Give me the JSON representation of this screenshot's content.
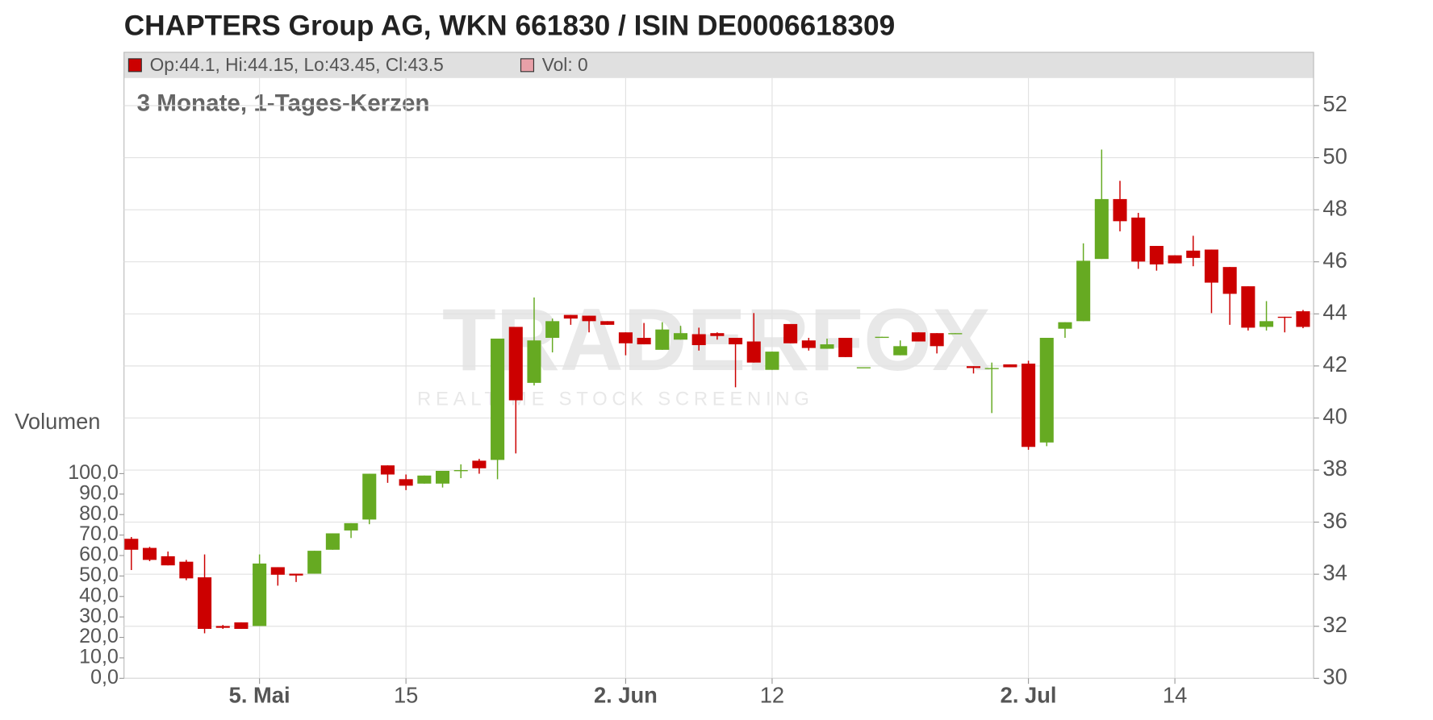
{
  "chart_data": {
    "type": "candlestick",
    "title": "CHAPTERS Group AG, WKN 661830 / ISIN DE0006618309",
    "subtitle": "3 Monate, 1-Tages-Kerzen",
    "legend": [
      {
        "name": "Op:44.1, Hi:44.15, Lo:43.45, Cl:43.5",
        "color": "#cc0000"
      },
      {
        "name": "Vol: 0",
        "color": "#e8a0a8"
      }
    ],
    "y2_label": "Volumen",
    "watermark": [
      "TRADERFOX",
      "REALTIME STOCK SCREENING"
    ],
    "categories": [
      null,
      null,
      null,
      null,
      null,
      null,
      null,
      "5. Mai",
      null,
      null,
      null,
      null,
      null,
      null,
      null,
      "15",
      null,
      null,
      null,
      null,
      null,
      null,
      null,
      null,
      null,
      null,
      null,
      "2. Jun",
      null,
      null,
      null,
      null,
      null,
      null,
      null,
      "12",
      null,
      null,
      null,
      null,
      null,
      null,
      null,
      null,
      null,
      null,
      null,
      null,
      null,
      "2. Jul",
      null,
      null,
      null,
      null,
      null,
      null,
      null,
      "14",
      null,
      null,
      null,
      null,
      null,
      null,
      null
    ],
    "open": [
      35.36,
      35.01,
      34.69,
      34.48,
      33.88,
      32.01,
      32.15,
      32.01,
      34.27,
      34.02,
      34.02,
      34.94,
      35.68,
      36.1,
      38.18,
      37.65,
      37.48,
      37.48,
      37.97,
      38.36,
      38.39,
      43.5,
      41.35,
      43.08,
      43.96,
      43.93,
      43.72,
      43.29,
      43.08,
      42.62,
      43.01,
      43.22,
      43.26,
      43.08,
      42.94,
      41.85,
      43.61,
      42.98,
      42.66,
      43.08,
      41.92,
      43.08,
      42.41,
      43.29,
      43.26,
      43.22,
      41.99,
      41.88,
      42.06,
      42.09,
      39.06,
      43.43,
      43.72,
      46.11,
      48.41,
      47.7,
      46.61,
      46.25,
      46.43,
      46.47,
      45.8,
      45.06,
      43.5,
      43.89,
      44.1
    ],
    "high": [
      35.43,
      35.05,
      34.87,
      34.55,
      34.76,
      32.05,
      32.15,
      34.76,
      34.27,
      34.02,
      34.9,
      35.57,
      35.96,
      37.86,
      38.18,
      37.83,
      37.79,
      37.97,
      38.22,
      38.43,
      43.05,
      43.5,
      44.63,
      43.82,
      43.96,
      43.93,
      43.72,
      43.29,
      43.65,
      43.68,
      43.54,
      43.47,
      43.29,
      43.08,
      44.03,
      42.55,
      43.61,
      43.08,
      43.05,
      43.08,
      41.95,
      43.12,
      42.98,
      43.29,
      43.26,
      43.26,
      41.99,
      42.13,
      42.06,
      42.2,
      43.08,
      43.68,
      46.71,
      50.31,
      49.11,
      47.88,
      46.61,
      46.25,
      47.0,
      46.47,
      45.8,
      45.06,
      44.49,
      43.89,
      44.15
    ],
    "low": [
      34.16,
      34.5,
      34.34,
      33.77,
      31.73,
      31.9,
      31.9,
      32.01,
      33.56,
      33.7,
      34.02,
      34.94,
      35.39,
      35.92,
      37.51,
      37.23,
      37.48,
      37.33,
      37.69,
      37.86,
      37.65,
      38.64,
      41.25,
      42.52,
      43.58,
      43.29,
      43.58,
      42.41,
      42.83,
      42.62,
      43.01,
      42.59,
      43.01,
      41.18,
      42.13,
      41.85,
      42.87,
      42.59,
      42.66,
      42.34,
      41.92,
      43.08,
      42.41,
      42.94,
      42.48,
      43.22,
      41.71,
      40.19,
      41.95,
      38.78,
      38.92,
      43.08,
      43.72,
      46.11,
      47.17,
      45.73,
      45.66,
      45.94,
      45.83,
      44.03,
      43.58,
      43.36,
      43.36,
      43.29,
      43.45
    ],
    "close": [
      34.94,
      34.55,
      34.34,
      33.84,
      31.9,
      31.94,
      31.9,
      34.41,
      33.98,
      33.95,
      34.9,
      35.57,
      35.96,
      37.86,
      37.83,
      37.4,
      37.79,
      37.97,
      38.0,
      38.07,
      43.05,
      40.68,
      42.98,
      43.72,
      43.82,
      43.72,
      43.58,
      42.87,
      42.83,
      43.4,
      43.26,
      42.8,
      43.15,
      42.83,
      42.13,
      42.55,
      42.87,
      42.69,
      42.83,
      42.34,
      41.95,
      43.12,
      42.76,
      42.94,
      42.76,
      43.26,
      41.92,
      41.92,
      41.95,
      38.89,
      43.08,
      43.68,
      46.04,
      48.41,
      47.56,
      46.01,
      45.9,
      45.94,
      46.15,
      45.2,
      44.77,
      43.47,
      43.72,
      43.86,
      43.5
    ],
    "up_color": "#66aa22",
    "down_color": "#cc0000",
    "ylim": [
      30,
      53.06
    ],
    "yticks": [
      30,
      32,
      34,
      36,
      38,
      40,
      42,
      44,
      46,
      48,
      50,
      52
    ],
    "y2lim": [
      0,
      100
    ],
    "y2ticks": [
      {
        "value": 0,
        "label": "0,0"
      },
      {
        "value": 10,
        "label": "10,0"
      },
      {
        "value": 20,
        "label": "20,0"
      },
      {
        "value": 30,
        "label": "30,0"
      },
      {
        "value": 40,
        "label": "40,0"
      },
      {
        "value": 50,
        "label": "50,0"
      },
      {
        "value": 60,
        "label": "60,0"
      },
      {
        "value": 70,
        "label": "70,0"
      },
      {
        "value": 80,
        "label": "80,0"
      },
      {
        "value": 90,
        "label": "90,0"
      },
      {
        "value": 100,
        "label": "100,0"
      }
    ],
    "grid": true
  }
}
